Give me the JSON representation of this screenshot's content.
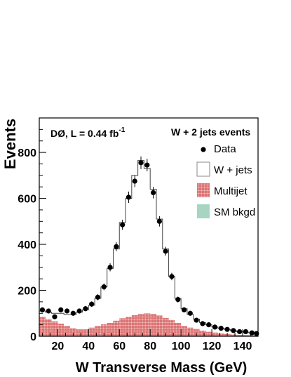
{
  "chart_data": {
    "type": "histogram",
    "title": "",
    "xlabel": "W Transverse Mass  (GeV)",
    "ylabel": "Events",
    "xlim": [
      8,
      150
    ],
    "ylim": [
      0,
      950
    ],
    "xticks": [
      20,
      40,
      60,
      80,
      100,
      120,
      140
    ],
    "yticks": [
      0,
      200,
      400,
      600,
      800
    ],
    "annotation_left": "DØ,  L = 0.44 fb",
    "annotation_left_sup": "-1",
    "annotation_right": "W + 2 jets events",
    "legend": {
      "placement": "right",
      "entries": [
        {
          "label": "Data",
          "style": "marker"
        },
        {
          "label": "W + jets",
          "style": "hollow"
        },
        {
          "label": "Multijet",
          "style": "hatched-red"
        },
        {
          "label": "SM bkgd",
          "style": "fill-teal"
        }
      ]
    },
    "colors": {
      "multijet": "#cc3333",
      "sm_bkgd": "#a8d5c2",
      "w_jets": "#444444",
      "data": "#000000"
    },
    "bin_edges": [
      8,
      12,
      16,
      20,
      24,
      28,
      32,
      36,
      40,
      44,
      48,
      52,
      56,
      60,
      64,
      68,
      72,
      76,
      80,
      84,
      88,
      92,
      96,
      100,
      104,
      108,
      112,
      116,
      120,
      124,
      128,
      132,
      136,
      140,
      144,
      148,
      150
    ],
    "series": [
      {
        "name": "Data",
        "x": [
          10,
          14,
          18,
          22,
          26,
          30,
          34,
          38,
          42,
          46,
          50,
          54,
          58,
          62,
          66,
          70,
          74,
          78,
          82,
          86,
          90,
          94,
          98,
          102,
          106,
          110,
          114,
          118,
          122,
          126,
          130,
          134,
          138,
          142,
          146,
          149
        ],
        "values": [
          115,
          110,
          85,
          115,
          110,
          100,
          110,
          120,
          140,
          170,
          215,
          300,
          390,
          485,
          605,
          675,
          755,
          745,
          625,
          500,
          370,
          260,
          160,
          115,
          100,
          70,
          55,
          50,
          40,
          35,
          30,
          25,
          20,
          20,
          15,
          12
        ]
      },
      {
        "name": "W + jets",
        "x": [
          10,
          14,
          18,
          22,
          26,
          30,
          34,
          38,
          42,
          46,
          50,
          54,
          58,
          62,
          66,
          70,
          74,
          78,
          82,
          86,
          90,
          94,
          98,
          102,
          106,
          110,
          114,
          118,
          122,
          126,
          130,
          134,
          138,
          142,
          146,
          149
        ],
        "values": [
          110,
          105,
          100,
          100,
          95,
          95,
          105,
          115,
          135,
          165,
          215,
          295,
          380,
          495,
          600,
          700,
          765,
          730,
          640,
          510,
          380,
          260,
          165,
          120,
          95,
          75,
          60,
          50,
          40,
          35,
          30,
          25,
          20,
          18,
          15,
          12
        ]
      },
      {
        "name": "Multijet",
        "x": [
          10,
          14,
          18,
          22,
          26,
          30,
          34,
          38,
          42,
          46,
          50,
          54,
          58,
          62,
          66,
          70,
          74,
          78,
          82,
          86,
          90,
          94,
          98,
          102,
          106,
          110,
          114,
          118,
          122,
          126,
          130,
          134,
          138,
          142,
          146,
          149
        ],
        "values": [
          85,
          75,
          65,
          55,
          45,
          35,
          30,
          30,
          38,
          45,
          52,
          58,
          68,
          78,
          85,
          92,
          98,
          100,
          98,
          90,
          80,
          70,
          58,
          45,
          38,
          32,
          25,
          20,
          16,
          13,
          10,
          8,
          6,
          5,
          4,
          3
        ]
      }
    ]
  }
}
